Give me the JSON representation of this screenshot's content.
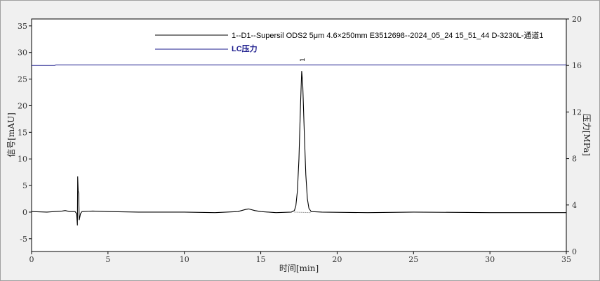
{
  "chart_data": {
    "type": "line",
    "xlabel": "时间[min]",
    "ylabel": "信号[mAU]",
    "y2label": "压力[MPa]",
    "xlim": [
      0,
      35
    ],
    "ylim": [
      -7.4,
      36.3
    ],
    "y2lim": [
      0,
      20
    ],
    "xticks": [
      "0",
      "5",
      "10",
      "15",
      "20",
      "25",
      "30",
      "35"
    ],
    "yticks": [
      "-5",
      "0",
      "5",
      "10",
      "15",
      "20",
      "25",
      "30",
      "35"
    ],
    "y2ticks": [
      "0",
      "4",
      "8",
      "12",
      "16",
      "20"
    ],
    "grid": false,
    "legend_position": "top-center",
    "colors": {
      "signal": "#000000",
      "pressure": "#1a1a8c",
      "baseline": "#999999"
    },
    "series": [
      {
        "name": "1--D1--Supersil ODS2 5μm 4.6×250mm E3512698--2024_05_24 15_51_44 D-3230L-通道1",
        "axis": "left",
        "x": [
          0,
          1.0,
          2.0,
          2.2,
          2.5,
          2.85,
          2.95,
          3.0,
          3.02,
          3.05,
          3.08,
          3.12,
          3.2,
          3.3,
          4.0,
          5.0,
          7.0,
          10.0,
          12.0,
          13.5,
          14.0,
          14.2,
          14.6,
          15.0,
          16.0,
          17.0,
          17.2,
          17.3,
          17.4,
          17.5,
          17.6,
          17.68,
          17.75,
          17.85,
          17.95,
          18.05,
          18.15,
          18.3,
          19.0,
          22.0,
          25.0,
          30.0,
          35.0
        ],
        "y": [
          0.1,
          0.0,
          0.2,
          0.3,
          0.1,
          0.1,
          -0.3,
          -2.5,
          6.7,
          4.0,
          3.5,
          -1.5,
          -0.3,
          0.1,
          0.2,
          0.1,
          0.0,
          0.0,
          -0.1,
          0.1,
          0.5,
          0.6,
          0.3,
          0.1,
          -0.1,
          0.0,
          0.3,
          1.2,
          4.0,
          10.0,
          20.0,
          26.5,
          24.0,
          15.0,
          7.0,
          2.5,
          0.7,
          0.1,
          0.0,
          -0.1,
          0.0,
          -0.1,
          -0.1
        ]
      },
      {
        "name": "LC压力",
        "axis": "right",
        "x": [
          0,
          1.5,
          1.6,
          35
        ],
        "y": [
          16.0,
          16.0,
          16.05,
          16.05
        ]
      }
    ],
    "peak_labels": [
      {
        "label": "1",
        "x": 17.68
      }
    ],
    "integration_baseline": {
      "x": [
        17.2,
        18.3
      ],
      "y": [
        0.0,
        -0.1
      ]
    }
  }
}
